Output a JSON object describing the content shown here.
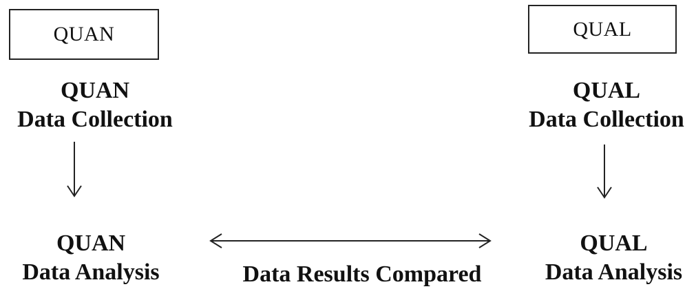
{
  "diagram": {
    "quan_box": {
      "label": "QUAN"
    },
    "qual_box": {
      "label": "QUAL"
    },
    "quan_collection": {
      "line1": "QUAN",
      "line2": "Data Collection"
    },
    "qual_collection": {
      "line1": "QUAL",
      "line2": "Data Collection"
    },
    "quan_analysis": {
      "line1": "QUAN",
      "line2": "Data Analysis"
    },
    "qual_analysis": {
      "line1": "QUAL",
      "line2": "Data Analysis"
    },
    "comparison": {
      "label": "Data Results Compared"
    }
  },
  "colors": {
    "text": "#111111",
    "stroke": "#222222",
    "background": "#ffffff"
  }
}
